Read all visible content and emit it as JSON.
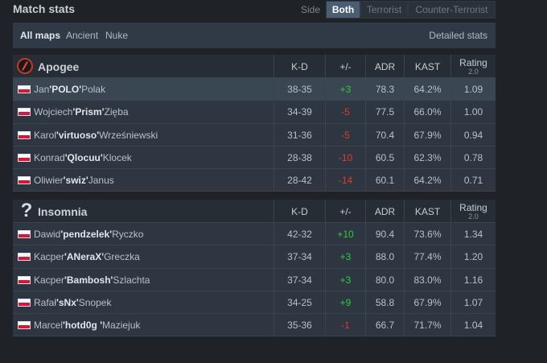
{
  "header": {
    "title": "Match stats",
    "side_label": "Side",
    "side_tabs": [
      "Both",
      "Terrorist",
      "Counter-Terrorist"
    ]
  },
  "filters": {
    "maps": [
      "All maps",
      "Ancient",
      "Nuke"
    ],
    "detailed": "Detailed stats"
  },
  "columns": {
    "kd": "K-D",
    "pm": "+/-",
    "adr": "ADR",
    "kast": "KAST",
    "rating": "Rating",
    "rating_version": "2.0"
  },
  "teams": [
    {
      "name": "Apogee",
      "players": [
        {
          "first": "Jan",
          "nick": "'POLO'",
          "last": "Polak",
          "kd": "38-35",
          "pm": "+3",
          "adr": "78.3",
          "kast": "64.2%",
          "rating": "1.09"
        },
        {
          "first": "Wojciech",
          "nick": "'Prism'",
          "last": "Zięba",
          "kd": "34-39",
          "pm": "-5",
          "adr": "77.5",
          "kast": "66.0%",
          "rating": "1.00"
        },
        {
          "first": "Karol",
          "nick": "'virtuoso'",
          "last": "Wrześniewski",
          "kd": "31-36",
          "pm": "-5",
          "adr": "70.4",
          "kast": "67.9%",
          "rating": "0.94"
        },
        {
          "first": "Konrad",
          "nick": "'Qlocuu'",
          "last": "Klocek",
          "kd": "28-38",
          "pm": "-10",
          "adr": "60.5",
          "kast": "62.3%",
          "rating": "0.78"
        },
        {
          "first": "Oliwier",
          "nick": "'swiz'",
          "last": "Janus",
          "kd": "28-42",
          "pm": "-14",
          "adr": "60.1",
          "kast": "64.2%",
          "rating": "0.71"
        }
      ]
    },
    {
      "name": "Insomnia",
      "logo_text": "?",
      "players": [
        {
          "first": "Dawid",
          "nick": "'pendzelek'",
          "last": "Ryczko",
          "kd": "42-32",
          "pm": "+10",
          "adr": "90.4",
          "kast": "73.6%",
          "rating": "1.34"
        },
        {
          "first": "Kacper",
          "nick": "'ANeraX'",
          "last": "Greczka",
          "kd": "37-34",
          "pm": "+3",
          "adr": "88.0",
          "kast": "77.4%",
          "rating": "1.20"
        },
        {
          "first": "Kacper",
          "nick": "'Bambosh'",
          "last": "Szlachta",
          "kd": "37-34",
          "pm": "+3",
          "adr": "80.0",
          "kast": "83.0%",
          "rating": "1.16"
        },
        {
          "first": "Rafał",
          "nick": "'sNx'",
          "last": "Snopek",
          "kd": "34-25",
          "pm": "+9",
          "adr": "58.8",
          "kast": "67.9%",
          "rating": "1.07"
        },
        {
          "first": "Marcel",
          "nick": "'hotd0g '",
          "last": "Maziejuk",
          "kd": "35-36",
          "pm": "-1",
          "adr": "66.7",
          "kast": "71.7%",
          "rating": "1.04"
        }
      ]
    }
  ]
}
